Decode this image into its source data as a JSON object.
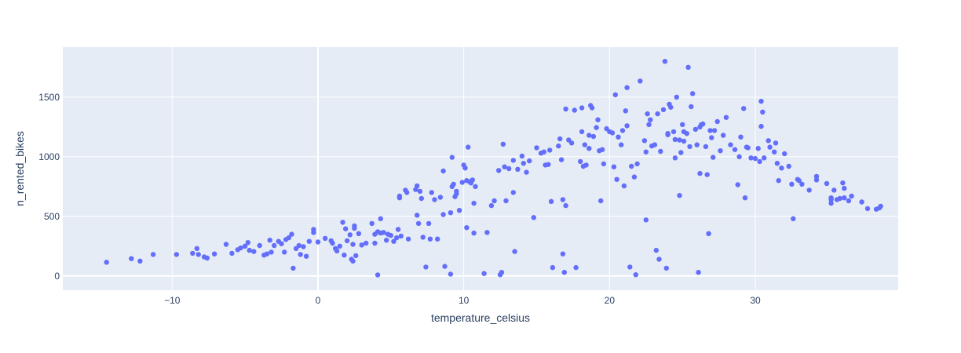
{
  "chart_data": {
    "type": "scatter",
    "title": "",
    "xlabel": "temperature_celsius",
    "ylabel": "n_rented_bikes",
    "xlim": [
      -17.5,
      39.8
    ],
    "ylim": [
      -120,
      1920
    ],
    "xticks": [
      -10,
      0,
      10,
      20,
      30
    ],
    "xtick_labels": [
      "−10",
      "0",
      "10",
      "20",
      "30"
    ],
    "yticks": [
      0,
      500,
      1000,
      1500
    ],
    "ytick_labels": [
      "0",
      "500",
      "1000",
      "1500"
    ],
    "grid": true,
    "marker_color": "#636efa",
    "plot_bg": "#e5ecf6",
    "series": [
      {
        "name": "n_rented_bikes",
        "points": [
          [
            -14.5,
            115
          ],
          [
            -12.8,
            145
          ],
          [
            -12.2,
            125
          ],
          [
            -11.3,
            180
          ],
          [
            -9.7,
            180
          ],
          [
            -8.6,
            190
          ],
          [
            -8.3,
            230
          ],
          [
            -8.2,
            180
          ],
          [
            -7.8,
            160
          ],
          [
            -7.6,
            150
          ],
          [
            -7.1,
            185
          ],
          [
            -6.3,
            265
          ],
          [
            -5.9,
            190
          ],
          [
            -5.5,
            220
          ],
          [
            -5.3,
            235
          ],
          [
            -5.0,
            250
          ],
          [
            -4.8,
            280
          ],
          [
            -4.7,
            215
          ],
          [
            -4.4,
            205
          ],
          [
            -4.0,
            255
          ],
          [
            -3.7,
            175
          ],
          [
            -3.5,
            185
          ],
          [
            -3.3,
            300
          ],
          [
            -3.2,
            200
          ],
          [
            -3.0,
            255
          ],
          [
            -2.7,
            290
          ],
          [
            -2.5,
            270
          ],
          [
            -2.3,
            200
          ],
          [
            -2.2,
            305
          ],
          [
            -2.0,
            320
          ],
          [
            -1.8,
            350
          ],
          [
            -1.7,
            65
          ],
          [
            -1.5,
            230
          ],
          [
            -1.3,
            255
          ],
          [
            -1.2,
            180
          ],
          [
            -1.0,
            245
          ],
          [
            -0.8,
            165
          ],
          [
            -0.6,
            290
          ],
          [
            -0.3,
            365
          ],
          [
            -0.3,
            390
          ],
          [
            0.0,
            285
          ],
          [
            0.5,
            315
          ],
          [
            0.9,
            295
          ],
          [
            1.0,
            275
          ],
          [
            1.2,
            230
          ],
          [
            1.3,
            210
          ],
          [
            1.5,
            250
          ],
          [
            1.7,
            450
          ],
          [
            1.8,
            175
          ],
          [
            1.9,
            395
          ],
          [
            2.0,
            295
          ],
          [
            2.2,
            345
          ],
          [
            2.3,
            140
          ],
          [
            2.4,
            265
          ],
          [
            2.4,
            125
          ],
          [
            2.5,
            420
          ],
          [
            2.5,
            400
          ],
          [
            2.6,
            170
          ],
          [
            2.8,
            355
          ],
          [
            3.0,
            260
          ],
          [
            3.3,
            275
          ],
          [
            3.7,
            440
          ],
          [
            3.9,
            275
          ],
          [
            3.9,
            350
          ],
          [
            4.1,
            8
          ],
          [
            4.1,
            370
          ],
          [
            4.3,
            480
          ],
          [
            4.3,
            360
          ],
          [
            4.5,
            365
          ],
          [
            4.7,
            300
          ],
          [
            4.8,
            350
          ],
          [
            5.0,
            340
          ],
          [
            5.2,
            290
          ],
          [
            5.4,
            320
          ],
          [
            5.5,
            390
          ],
          [
            5.6,
            655
          ],
          [
            5.6,
            670
          ],
          [
            5.7,
            335
          ],
          [
            6.0,
            720
          ],
          [
            6.1,
            700
          ],
          [
            6.2,
            310
          ],
          [
            6.7,
            725
          ],
          [
            6.8,
            755
          ],
          [
            6.8,
            510
          ],
          [
            6.9,
            440
          ],
          [
            7.0,
            710
          ],
          [
            7.1,
            650
          ],
          [
            7.2,
            325
          ],
          [
            7.4,
            75
          ],
          [
            7.6,
            440
          ],
          [
            7.7,
            310
          ],
          [
            7.8,
            700
          ],
          [
            8.0,
            640
          ],
          [
            8.2,
            310
          ],
          [
            8.4,
            660
          ],
          [
            8.6,
            515
          ],
          [
            8.6,
            880
          ],
          [
            8.7,
            80
          ],
          [
            9.1,
            530
          ],
          [
            9.1,
            15
          ],
          [
            9.2,
            750
          ],
          [
            9.2,
            995
          ],
          [
            9.3,
            770
          ],
          [
            9.4,
            665
          ],
          [
            9.5,
            690
          ],
          [
            9.5,
            710
          ],
          [
            9.7,
            550
          ],
          [
            9.9,
            785
          ],
          [
            10.0,
            930
          ],
          [
            10.1,
            905
          ],
          [
            10.2,
            800
          ],
          [
            10.2,
            405
          ],
          [
            10.3,
            1080
          ],
          [
            10.4,
            790
          ],
          [
            10.5,
            780
          ],
          [
            10.6,
            805
          ],
          [
            10.7,
            610
          ],
          [
            10.7,
            360
          ],
          [
            10.8,
            750
          ],
          [
            11.4,
            20
          ],
          [
            11.6,
            365
          ],
          [
            11.9,
            590
          ],
          [
            12.1,
            630
          ],
          [
            12.4,
            885
          ],
          [
            12.5,
            10
          ],
          [
            12.6,
            30
          ],
          [
            12.7,
            1105
          ],
          [
            12.8,
            915
          ],
          [
            12.9,
            630
          ],
          [
            13.1,
            900
          ],
          [
            13.4,
            970
          ],
          [
            13.4,
            700
          ],
          [
            13.5,
            205
          ],
          [
            13.7,
            895
          ],
          [
            14.0,
            1005
          ],
          [
            14.1,
            945
          ],
          [
            14.3,
            870
          ],
          [
            14.5,
            965
          ],
          [
            14.8,
            490
          ],
          [
            15.0,
            1075
          ],
          [
            15.3,
            1030
          ],
          [
            15.5,
            1040
          ],
          [
            15.6,
            930
          ],
          [
            15.8,
            935
          ],
          [
            15.9,
            1055
          ],
          [
            16.0,
            625
          ],
          [
            16.1,
            70
          ],
          [
            16.5,
            1090
          ],
          [
            16.6,
            1150
          ],
          [
            16.7,
            975
          ],
          [
            16.8,
            640
          ],
          [
            16.8,
            185
          ],
          [
            16.9,
            30
          ],
          [
            17.0,
            1400
          ],
          [
            17.0,
            590
          ],
          [
            17.2,
            1140
          ],
          [
            17.4,
            1115
          ],
          [
            17.6,
            1390
          ],
          [
            17.7,
            70
          ],
          [
            18.0,
            960
          ],
          [
            18.1,
            1410
          ],
          [
            18.1,
            1210
          ],
          [
            18.2,
            920
          ],
          [
            18.3,
            1100
          ],
          [
            18.4,
            930
          ],
          [
            18.6,
            1180
          ],
          [
            18.6,
            1070
          ],
          [
            18.7,
            1430
          ],
          [
            18.8,
            1410
          ],
          [
            18.9,
            1170
          ],
          [
            19.1,
            1245
          ],
          [
            19.2,
            1310
          ],
          [
            19.3,
            1050
          ],
          [
            19.4,
            630
          ],
          [
            19.5,
            1060
          ],
          [
            19.6,
            940
          ],
          [
            19.8,
            1235
          ],
          [
            20.0,
            1210
          ],
          [
            20.2,
            1200
          ],
          [
            20.3,
            915
          ],
          [
            20.4,
            1520
          ],
          [
            20.5,
            810
          ],
          [
            20.6,
            1165
          ],
          [
            20.8,
            1100
          ],
          [
            20.9,
            1220
          ],
          [
            21.0,
            755
          ],
          [
            21.1,
            1385
          ],
          [
            21.2,
            1580
          ],
          [
            21.2,
            1260
          ],
          [
            21.4,
            75
          ],
          [
            21.5,
            920
          ],
          [
            21.7,
            830
          ],
          [
            21.8,
            10
          ],
          [
            21.9,
            940
          ],
          [
            22.1,
            1635
          ],
          [
            22.4,
            1135
          ],
          [
            22.5,
            470
          ],
          [
            22.5,
            1040
          ],
          [
            22.6,
            1360
          ],
          [
            22.7,
            1270
          ],
          [
            22.8,
            1310
          ],
          [
            22.9,
            1090
          ],
          [
            23.1,
            1100
          ],
          [
            23.2,
            215
          ],
          [
            23.3,
            1360
          ],
          [
            23.4,
            140
          ],
          [
            23.5,
            1045
          ],
          [
            23.7,
            1395
          ],
          [
            23.8,
            1800
          ],
          [
            23.9,
            65
          ],
          [
            24.0,
            1185
          ],
          [
            24.0,
            1195
          ],
          [
            24.1,
            1440
          ],
          [
            24.2,
            1415
          ],
          [
            24.4,
            1210
          ],
          [
            24.5,
            1145
          ],
          [
            24.5,
            990
          ],
          [
            24.6,
            1500
          ],
          [
            24.8,
            675
          ],
          [
            24.8,
            1140
          ],
          [
            24.9,
            1035
          ],
          [
            25.0,
            1270
          ],
          [
            25.1,
            1210
          ],
          [
            25.1,
            1130
          ],
          [
            25.3,
            1195
          ],
          [
            25.4,
            1750
          ],
          [
            25.5,
            1085
          ],
          [
            25.6,
            1420
          ],
          [
            25.7,
            1530
          ],
          [
            25.9,
            1230
          ],
          [
            26.0,
            1100
          ],
          [
            26.1,
            30
          ],
          [
            26.2,
            1250
          ],
          [
            26.2,
            860
          ],
          [
            26.3,
            1270
          ],
          [
            26.4,
            1275
          ],
          [
            26.6,
            1085
          ],
          [
            26.7,
            850
          ],
          [
            26.8,
            355
          ],
          [
            26.9,
            1220
          ],
          [
            27.0,
            1160
          ],
          [
            27.1,
            995
          ],
          [
            27.2,
            1220
          ],
          [
            27.4,
            1295
          ],
          [
            27.6,
            1050
          ],
          [
            27.8,
            1180
          ],
          [
            28.0,
            1330
          ],
          [
            28.3,
            1100
          ],
          [
            28.6,
            1060
          ],
          [
            28.8,
            765
          ],
          [
            28.9,
            1000
          ],
          [
            29.0,
            1165
          ],
          [
            29.2,
            1405
          ],
          [
            29.3,
            655
          ],
          [
            29.4,
            1080
          ],
          [
            29.5,
            1075
          ],
          [
            29.7,
            990
          ],
          [
            30.0,
            985
          ],
          [
            30.2,
            1070
          ],
          [
            30.3,
            960
          ],
          [
            30.4,
            1465
          ],
          [
            30.4,
            1255
          ],
          [
            30.5,
            1375
          ],
          [
            30.6,
            990
          ],
          [
            30.9,
            1135
          ],
          [
            31.0,
            1080
          ],
          [
            31.3,
            1040
          ],
          [
            31.4,
            1115
          ],
          [
            31.5,
            945
          ],
          [
            31.6,
            800
          ],
          [
            31.8,
            905
          ],
          [
            32.0,
            1025
          ],
          [
            32.3,
            920
          ],
          [
            32.5,
            770
          ],
          [
            32.6,
            480
          ],
          [
            32.9,
            810
          ],
          [
            33.0,
            800
          ],
          [
            33.2,
            770
          ],
          [
            33.7,
            720
          ],
          [
            34.2,
            835
          ],
          [
            34.2,
            805
          ],
          [
            34.9,
            775
          ],
          [
            35.2,
            640
          ],
          [
            35.2,
            610
          ],
          [
            35.2,
            655
          ],
          [
            35.4,
            720
          ],
          [
            35.6,
            640
          ],
          [
            35.8,
            650
          ],
          [
            36.0,
            780
          ],
          [
            36.1,
            735
          ],
          [
            36.1,
            655
          ],
          [
            36.4,
            630
          ],
          [
            36.6,
            670
          ],
          [
            37.3,
            620
          ],
          [
            37.7,
            565
          ],
          [
            38.3,
            560
          ],
          [
            38.5,
            570
          ],
          [
            38.6,
            585
          ]
        ]
      }
    ]
  }
}
